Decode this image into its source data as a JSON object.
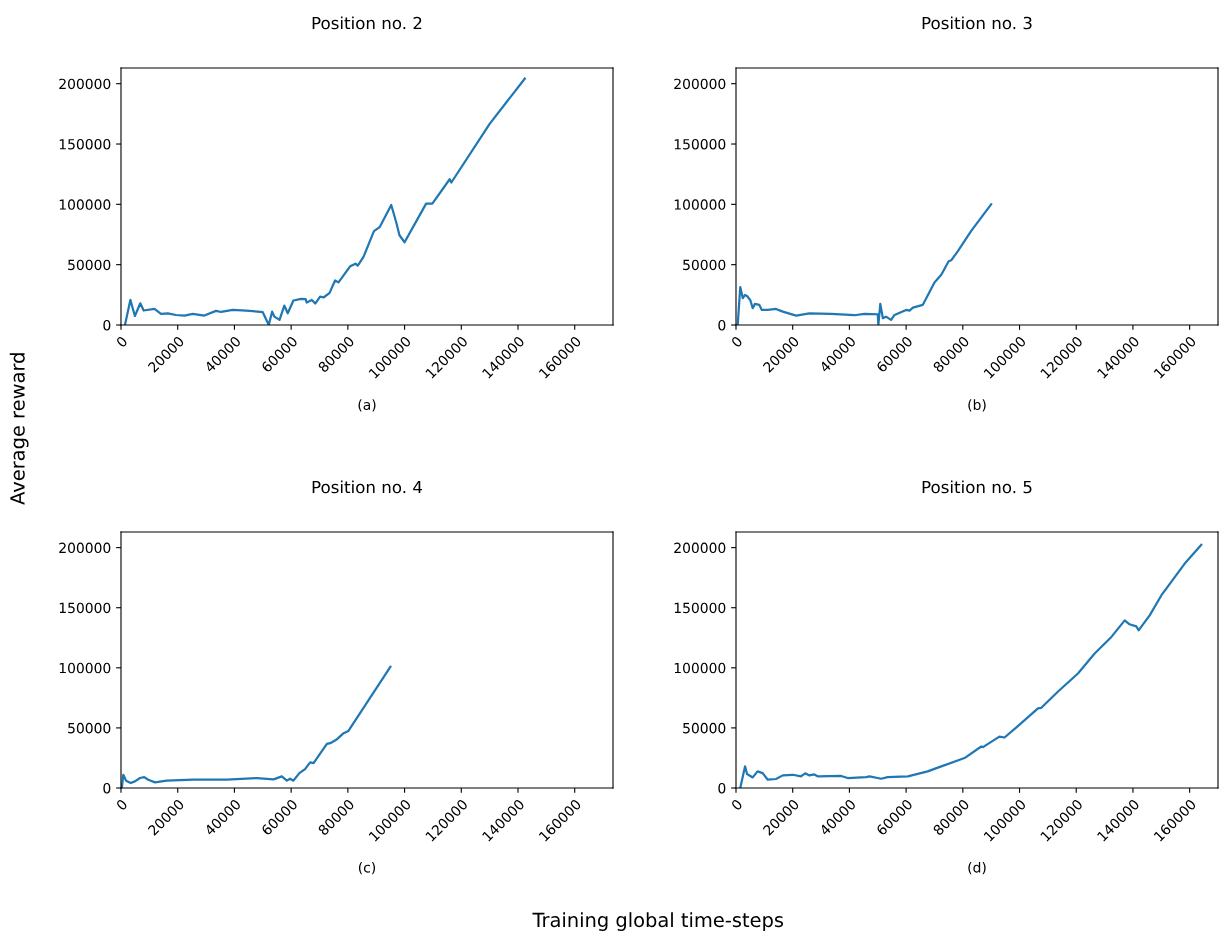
{
  "chart_data": [
    {
      "type": "line",
      "title": "Position no. 2",
      "xlabel": "Training global time-steps",
      "ylabel": "Average reward",
      "annotations": [
        "(a)"
      ],
      "color": "#1f77b4",
      "xlim": [
        0,
        173500
      ],
      "ylim": [
        0,
        213000
      ],
      "xticks": [
        0,
        20000,
        40000,
        60000,
        80000,
        100000,
        120000,
        140000,
        160000
      ],
      "yticks": [
        0,
        50000,
        100000,
        150000,
        200000
      ],
      "grid": false,
      "legend": false,
      "x": [
        1400,
        3300,
        4900,
        6800,
        8000,
        11800,
        14100,
        16500,
        19400,
        22400,
        25300,
        29400,
        33500,
        35300,
        39400,
        44100,
        48200,
        50000,
        52100,
        53300,
        54100,
        55900,
        57600,
        58800,
        60800,
        63500,
        65100,
        65500,
        67300,
        68500,
        70200,
        71400,
        73500,
        75500,
        76700,
        80800,
        82700,
        83500,
        85500,
        89200,
        91200,
        95300,
        97100,
        98200,
        100000,
        107600,
        109800,
        115900,
        116500,
        130000,
        142400
      ],
      "values": [
        0,
        20800,
        7500,
        18000,
        12000,
        13300,
        9200,
        9700,
        8300,
        7800,
        9200,
        7800,
        11700,
        10800,
        12500,
        11900,
        11100,
        10600,
        0,
        11100,
        6900,
        4200,
        16100,
        9700,
        20300,
        21700,
        21400,
        18600,
        20800,
        17800,
        23600,
        22800,
        26400,
        36900,
        35300,
        48600,
        50800,
        49200,
        56400,
        77800,
        81100,
        99500,
        84700,
        74400,
        68600,
        100600,
        100600,
        120800,
        118100,
        166700,
        204200
      ]
    },
    {
      "type": "line",
      "title": "Position no. 3",
      "annotations": [
        "(b)"
      ],
      "color": "#1f77b4",
      "xlim": [
        0,
        170000
      ],
      "ylim": [
        0,
        213000
      ],
      "xticks": [
        0,
        20000,
        40000,
        60000,
        80000,
        100000,
        120000,
        140000,
        160000
      ],
      "yticks": [
        0,
        50000,
        100000,
        150000,
        200000
      ],
      "grid": false,
      "legend": false,
      "x": [
        600,
        1500,
        2400,
        3200,
        4100,
        5100,
        5900,
        6700,
        8200,
        9100,
        11200,
        14100,
        16500,
        21200,
        25900,
        33500,
        41800,
        45300,
        50000,
        50200,
        50900,
        51800,
        52900,
        54700,
        55900,
        60000,
        61200,
        62400,
        65900,
        70000,
        72400,
        75000,
        75900,
        78200,
        82900,
        90000
      ],
      "values": [
        0,
        31400,
        22200,
        25000,
        23600,
        20300,
        13900,
        17500,
        16700,
        12500,
        12500,
        13300,
        11100,
        7800,
        9700,
        9200,
        8100,
        9200,
        8900,
        0,
        17500,
        5600,
        6900,
        4200,
        8300,
        12500,
        11900,
        14400,
        16700,
        35300,
        41700,
        52800,
        53600,
        61100,
        77800,
        100000
      ]
    },
    {
      "type": "line",
      "title": "Position no. 4",
      "annotations": [
        "(c)"
      ],
      "color": "#1f77b4",
      "xlim": [
        0,
        173500
      ],
      "ylim": [
        0,
        213000
      ],
      "xticks": [
        0,
        20000,
        40000,
        60000,
        80000,
        100000,
        120000,
        140000,
        160000
      ],
      "yticks": [
        0,
        50000,
        100000,
        150000,
        200000
      ],
      "grid": false,
      "legend": false,
      "x": [
        300,
        800,
        1800,
        3400,
        4900,
        6700,
        8200,
        9600,
        12000,
        16100,
        25500,
        37300,
        47900,
        53800,
        56700,
        58500,
        59600,
        60800,
        62900,
        64900,
        66700,
        67900,
        72600,
        73800,
        75900,
        78500,
        80200,
        95000
      ],
      "values": [
        0,
        11000,
        6100,
        4100,
        5500,
        8300,
        9100,
        6900,
        4700,
        6100,
        6900,
        6900,
        8300,
        7200,
        9700,
        6100,
        7700,
        6100,
        12400,
        15700,
        21300,
        20700,
        36700,
        37300,
        40100,
        45600,
        47500,
        100800
      ]
    },
    {
      "type": "line",
      "title": "Position no. 5",
      "annotations": [
        "(d)"
      ],
      "color": "#1f77b4",
      "xlim": [
        0,
        170000
      ],
      "ylim": [
        0,
        213000
      ],
      "xticks": [
        0,
        20000,
        40000,
        60000,
        80000,
        100000,
        120000,
        140000,
        160000
      ],
      "yticks": [
        0,
        50000,
        100000,
        150000,
        200000
      ],
      "grid": false,
      "legend": false,
      "x": [
        1500,
        3200,
        3900,
        5900,
        7600,
        9400,
        11200,
        14100,
        16500,
        20000,
        22900,
        24400,
        25900,
        27600,
        28800,
        37100,
        39400,
        45900,
        47100,
        51200,
        53500,
        60600,
        67600,
        72400,
        80600,
        86500,
        87100,
        92900,
        94700,
        100600,
        106500,
        107600,
        113500,
        120600,
        126500,
        132400,
        137100,
        138800,
        141200,
        142000,
        145900,
        150000,
        158200,
        164100
      ],
      "values": [
        0,
        18000,
        11600,
        8800,
        13800,
        12400,
        6900,
        7500,
        10500,
        11000,
        9700,
        12200,
        10500,
        11300,
        9700,
        10000,
        8300,
        9100,
        9700,
        7700,
        9100,
        9700,
        13800,
        18000,
        24900,
        34500,
        34000,
        42800,
        42000,
        53900,
        66300,
        66600,
        80100,
        95300,
        111900,
        125700,
        139500,
        136200,
        134500,
        131200,
        143600,
        160200,
        186500,
        202300
      ]
    }
  ]
}
